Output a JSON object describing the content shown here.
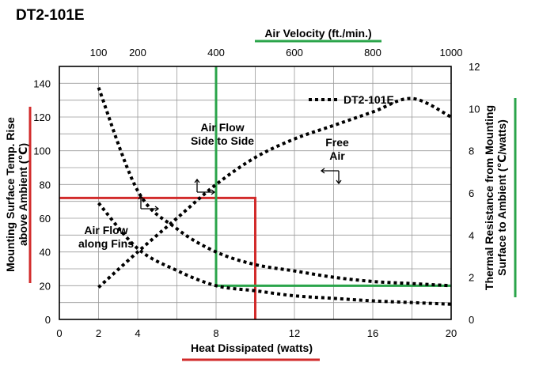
{
  "chart_data": {
    "type": "line",
    "title": "DT2-101E",
    "xlabel": "Heat Dissipated (watts)",
    "xlim": [
      0,
      20
    ],
    "x_ticks": [
      "0",
      "2",
      "4",
      "8",
      "12",
      "16",
      "20"
    ],
    "ylabel_left": "Mounting Surface Temp. Rise above Ambient (℃)",
    "ylim_left": [
      0,
      150
    ],
    "y_left_ticks": [
      "0",
      "20",
      "40",
      "60",
      "80",
      "100",
      "120",
      "140"
    ],
    "top_axis_label": "Air Velocity (ft./min.)",
    "top_axis_lim": [
      0,
      1000
    ],
    "top_axis_ticks": [
      "100",
      "200",
      "400",
      "600",
      "800",
      "1000"
    ],
    "ylabel_right": "Thermal Resistance from Mounting Surface to Ambient (℃/watts)",
    "ylim_right": [
      0,
      12
    ],
    "y_right_ticks": [
      "0",
      "2",
      "4",
      "6",
      "8",
      "10",
      "12"
    ],
    "grid": true,
    "legend": {
      "label": "DT2-101E",
      "position": "top-right"
    },
    "series": [
      {
        "axes": "bottom-left",
        "x": [
          2,
          4,
          6,
          8,
          10,
          12,
          14,
          16,
          18,
          20
        ],
        "y": [
          19,
          40,
          60,
          80,
          96,
          107,
          115,
          123,
          131,
          120
        ]
      },
      {
        "axes": "bottom-left",
        "x": [
          2,
          4,
          6,
          8,
          10,
          12,
          14,
          16,
          18,
          20
        ],
        "y": [
          69,
          42,
          29,
          20,
          17,
          14,
          12.5,
          11,
          10,
          9
        ]
      },
      {
        "axes": "top-right",
        "x": [
          100,
          200,
          300,
          400,
          500,
          600,
          700,
          800,
          900,
          1000
        ],
        "y": [
          11,
          6.1,
          4.3,
          3.2,
          2.6,
          2.3,
          2.0,
          1.8,
          1.7,
          1.6
        ]
      }
    ],
    "annotations": [
      {
        "text": [
          "Air Flow",
          "Side to Side"
        ]
      },
      {
        "text": [
          "Free",
          "Air"
        ]
      },
      {
        "text": [
          "Air Flow",
          "along Fins"
        ]
      }
    ],
    "reference_lines": [
      {
        "color": "#d22b2b",
        "x": 10,
        "y": 72
      },
      {
        "color": "#2aa44a",
        "x": 8,
        "y": 20
      }
    ],
    "colors": {
      "curve": "#000000",
      "red": "#d22b2b",
      "green": "#2aa44a",
      "grid": "#9a9a9a"
    }
  }
}
